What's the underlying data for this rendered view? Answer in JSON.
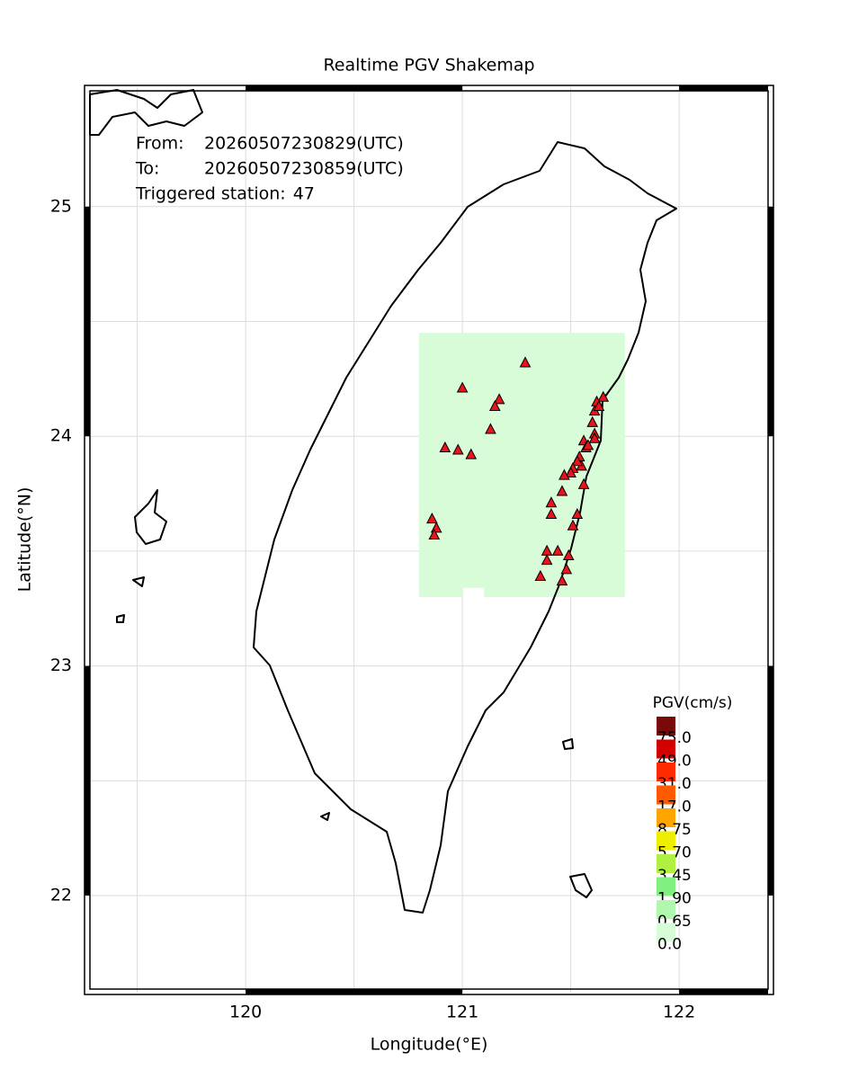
{
  "chart_data": {
    "type": "map",
    "title": "Realtime PGV Shakemap",
    "xlabel": "Longitude(°E)",
    "ylabel": "Latitude(°N)",
    "xlim": [
      119.265,
      122.427
    ],
    "ylim": [
      21.577,
      25.52
    ],
    "xticks": [
      120,
      121,
      122
    ],
    "yticks": [
      22,
      23,
      24,
      25
    ],
    "xgrid": [
      119.5,
      120,
      120.5,
      121,
      121.5,
      122
    ],
    "ygrid": [
      22,
      22.5,
      23,
      23.5,
      24,
      24.5,
      25,
      25.5
    ],
    "annotations": [
      {
        "label": "From:",
        "value": "20260507230829(UTC)"
      },
      {
        "label": "To:",
        "value": "20260507230859(UTC)"
      }
    ],
    "triggered_label": "Triggered station:",
    "triggered_count": 47,
    "pgv_area": {
      "color": "#d8fcd8",
      "x": [
        120.8,
        121.75,
        121.75,
        121.1,
        121.1,
        121.0,
        121.0,
        120.8
      ],
      "y": [
        24.45,
        24.45,
        23.3,
        23.3,
        23.34,
        23.34,
        23.3,
        23.3
      ]
    },
    "stations": {
      "color": "#e8141c",
      "x": [
        121.29,
        121.0,
        121.17,
        121.15,
        121.13,
        120.92,
        120.98,
        121.04,
        120.86,
        120.88,
        120.87,
        121.65,
        121.62,
        121.61,
        121.6,
        121.61,
        121.61,
        121.56,
        121.57,
        121.58,
        121.54,
        121.55,
        121.53,
        121.51,
        121.5,
        121.47,
        121.56,
        121.46,
        121.41,
        121.41,
        121.53,
        121.51,
        121.39,
        121.44,
        121.39,
        121.49,
        121.48,
        121.36,
        121.46,
        121.63
      ],
      "y": [
        24.32,
        24.21,
        24.16,
        24.13,
        24.03,
        23.95,
        23.94,
        23.92,
        23.64,
        23.6,
        23.57,
        24.17,
        24.15,
        24.11,
        24.06,
        24.01,
        23.99,
        23.98,
        23.95,
        23.96,
        23.91,
        23.87,
        23.89,
        23.86,
        23.84,
        23.83,
        23.79,
        23.76,
        23.71,
        23.66,
        23.66,
        23.61,
        23.5,
        23.5,
        23.46,
        23.48,
        23.42,
        23.39,
        23.37,
        24.13
      ]
    },
    "legend": {
      "title": "PGV(cm/s)",
      "levels": [
        {
          "value": 75,
          "label": "75.0",
          "color": "#7a0a0a"
        },
        {
          "value": 49,
          "label": "49.0",
          "color": "#d40000"
        },
        {
          "value": 31,
          "label": "31.0",
          "color": "#ff2a00"
        },
        {
          "value": 17,
          "label": "17.0",
          "color": "#ff5a00"
        },
        {
          "value": 8.75,
          "label": "8.75",
          "color": "#ffa500"
        },
        {
          "value": 5.7,
          "label": "5.70",
          "color": "#eeee00"
        },
        {
          "value": 3.45,
          "label": "3.45",
          "color": "#b0f040"
        },
        {
          "value": 1.9,
          "label": "1.90",
          "color": "#80f080"
        },
        {
          "value": 0.65,
          "label": "0.65",
          "color": "#b0f8b0"
        },
        {
          "value": 0,
          "label": "0.0",
          "color": "#d8fcd8"
        }
      ]
    }
  }
}
